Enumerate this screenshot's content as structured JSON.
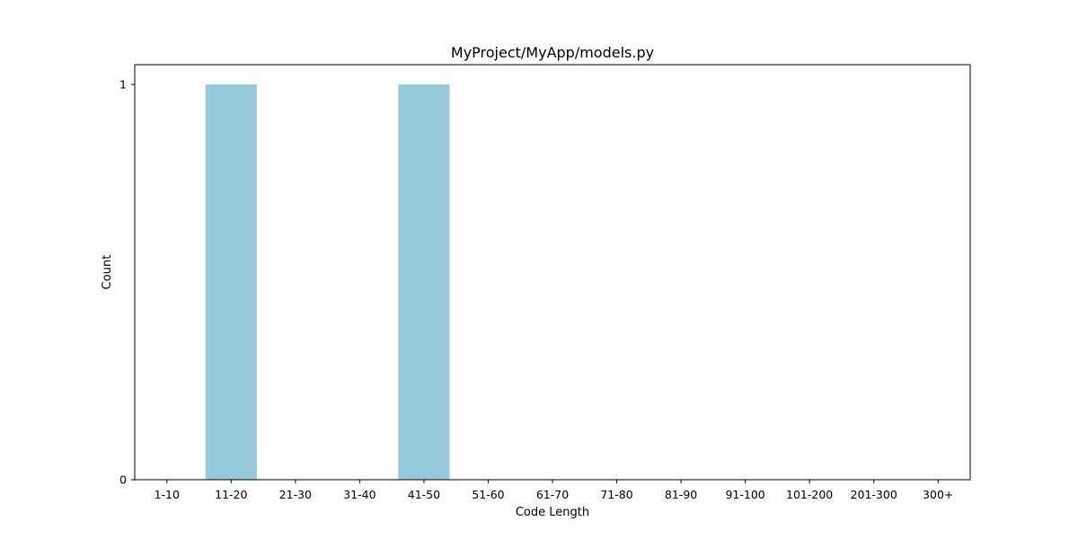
{
  "chart_data": {
    "type": "bar",
    "title": "MyProject/MyApp/models.py",
    "xlabel": "Code Length",
    "ylabel": "Count",
    "categories": [
      "1-10",
      "11-20",
      "21-30",
      "31-40",
      "41-50",
      "51-60",
      "61-70",
      "71-80",
      "81-90",
      "91-100",
      "101-200",
      "201-300",
      "300+"
    ],
    "values": [
      0,
      1,
      0,
      0,
      1,
      0,
      0,
      0,
      0,
      0,
      0,
      0,
      0
    ],
    "yticks": [
      0,
      1
    ],
    "ylim": [
      0,
      1.05
    ],
    "grid": false,
    "legend": false,
    "bar_color": "#96c9dc"
  }
}
